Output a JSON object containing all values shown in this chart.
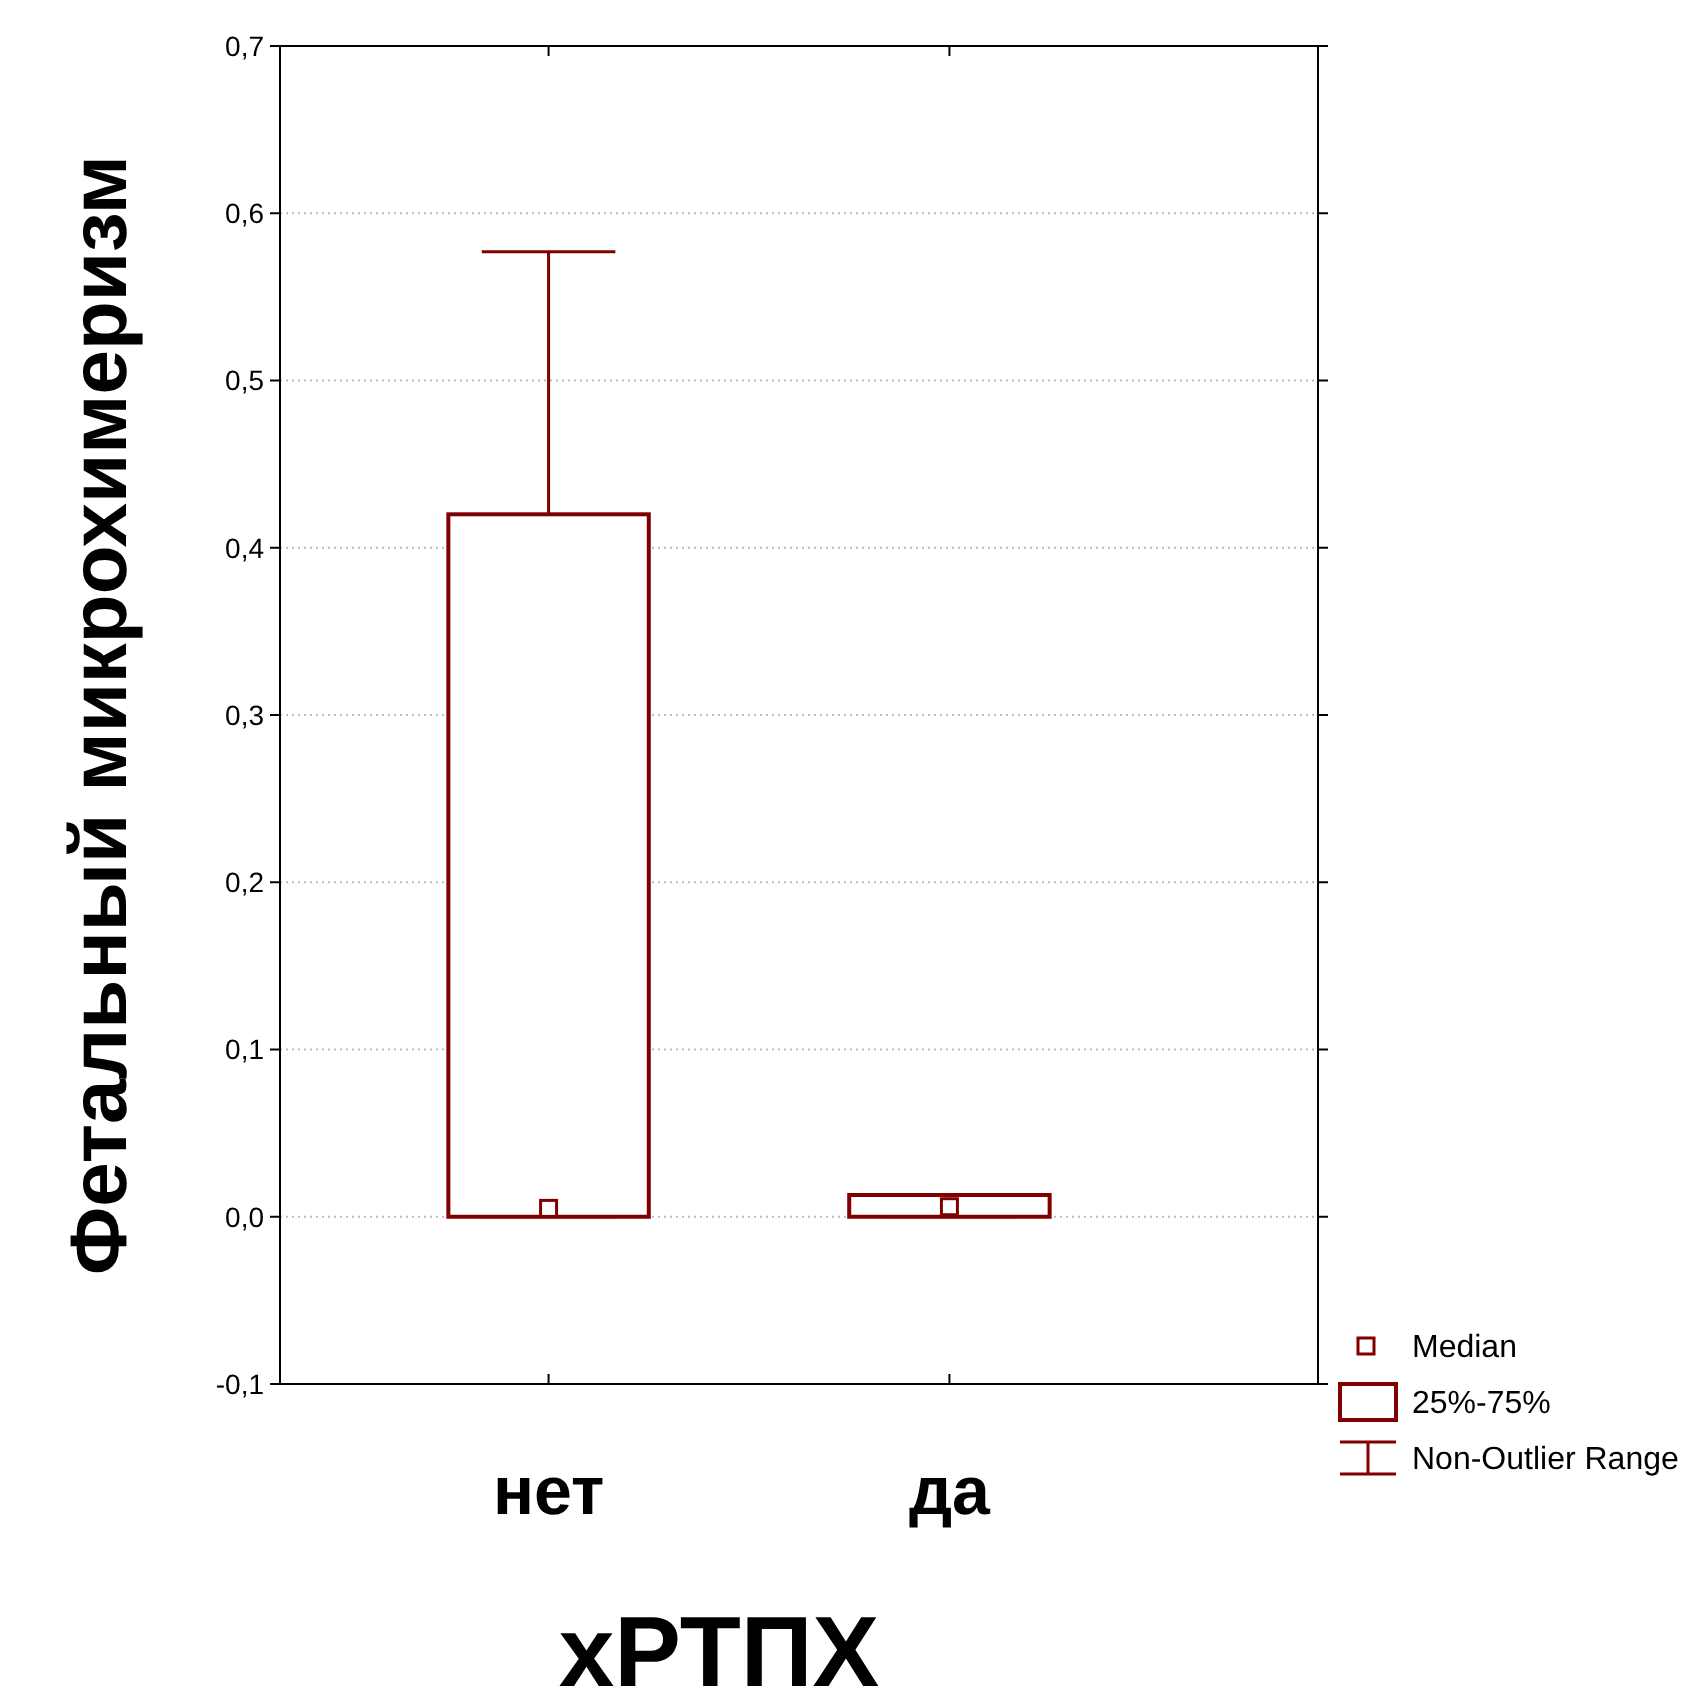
{
  "chart_data": {
    "type": "box",
    "xlabel": "хРТПХ",
    "ylabel": "Фетальный микрохимеризм",
    "categories": [
      "нет",
      "да"
    ],
    "boxes": [
      {
        "low": 0,
        "q1": 0,
        "median": 0.005,
        "q3": 0.42,
        "high": 0.577
      },
      {
        "low": 0,
        "q1": 0,
        "median": 0.006,
        "q3": 0.013,
        "high": 0.013
      }
    ],
    "color": "#800000",
    "ylim": [
      -0.1,
      0.7
    ],
    "yticks": [
      {
        "value": -0.1,
        "label": "-0,1"
      },
      {
        "value": 0,
        "label": "0,0"
      },
      {
        "value": 0.1,
        "label": "0,1"
      },
      {
        "value": 0.2,
        "label": "0,2"
      },
      {
        "value": 0.3,
        "label": "0,3"
      },
      {
        "value": 0.4,
        "label": "0,4"
      },
      {
        "value": 0.5,
        "label": "0,5"
      },
      {
        "value": 0.6,
        "label": "0,6"
      },
      {
        "value": 0.7,
        "label": "0,7"
      }
    ],
    "grid": "y",
    "annotations": [
      "Median",
      "25%-75%",
      "Non-Outlier Range"
    ]
  }
}
